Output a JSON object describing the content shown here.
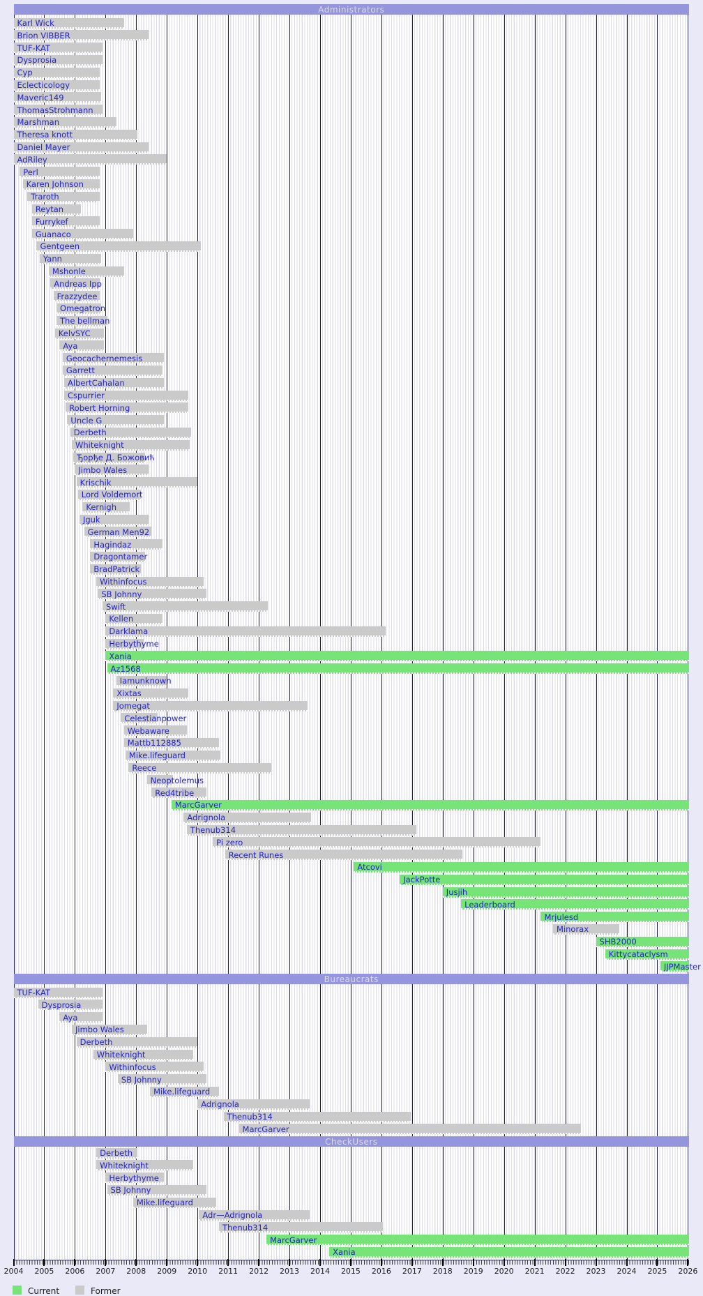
{
  "colors": {
    "page_background": "#e9e9f8",
    "header_bar": "#9595dd",
    "header_text": "#dcdce8",
    "current_bar": "#76e476",
    "former_bar": "#cacaca",
    "label_text": "#2222cc",
    "year_gridline": "#1a1a5e"
  },
  "legend": [
    {
      "label": "Current",
      "color": "#76e476"
    },
    {
      "label": "Former",
      "color": "#cacaca"
    }
  ],
  "chart_data": {
    "type": "timeline",
    "unit": "year",
    "axis": {
      "min": 2004,
      "max": 2026,
      "tick_years": [
        2004,
        2005,
        2006,
        2007,
        2008,
        2009,
        2010,
        2011,
        2012,
        2013,
        2014,
        2015,
        2016,
        2017,
        2018,
        2019,
        2020,
        2021,
        2022,
        2023,
        2024,
        2025,
        2026
      ],
      "grid": "yearly-major-monthly-minor",
      "legend_position": "bottom-left"
    },
    "sections": [
      {
        "title": "Administrators",
        "entries": [
          {
            "name": "Karl Wick",
            "start": 2004.0,
            "end": 2007.6,
            "status": "former"
          },
          {
            "name": "Brion VIBBER",
            "start": 2004.0,
            "end": 2008.4,
            "status": "former"
          },
          {
            "name": "TUF-KAT",
            "start": 2004.0,
            "end": 2006.9,
            "status": "former"
          },
          {
            "name": "Dysprosia",
            "start": 2004.0,
            "end": 2006.9,
            "status": "former"
          },
          {
            "name": "Cyp",
            "start": 2004.0,
            "end": 2006.8,
            "status": "former"
          },
          {
            "name": "Eclecticology",
            "start": 2004.0,
            "end": 2006.8,
            "status": "former"
          },
          {
            "name": "Maveric149",
            "start": 2004.0,
            "end": 2006.85,
            "status": "former"
          },
          {
            "name": "ThomasStrohmann",
            "start": 2004.0,
            "end": 2006.9,
            "status": "former"
          },
          {
            "name": "Marshman",
            "start": 2004.0,
            "end": 2007.35,
            "status": "former"
          },
          {
            "name": "Theresa knott",
            "start": 2004.0,
            "end": 2008.05,
            "status": "former"
          },
          {
            "name": "Daniel Mayer",
            "start": 2004.0,
            "end": 2008.4,
            "status": "former"
          },
          {
            "name": "AdRiley",
            "start": 2004.0,
            "end": 2009.0,
            "status": "former"
          },
          {
            "name": "Perl",
            "start": 2004.2,
            "end": 2006.8,
            "status": "former"
          },
          {
            "name": "Karen Johnson",
            "start": 2004.3,
            "end": 2006.8,
            "status": "former"
          },
          {
            "name": "Traroth",
            "start": 2004.45,
            "end": 2006.8,
            "status": "former"
          },
          {
            "name": "Reytan",
            "start": 2004.6,
            "end": 2006.2,
            "status": "former"
          },
          {
            "name": "Furrykef",
            "start": 2004.6,
            "end": 2006.8,
            "status": "former"
          },
          {
            "name": "Guanaco",
            "start": 2004.6,
            "end": 2007.9,
            "status": "former"
          },
          {
            "name": "Gentgeen",
            "start": 2004.75,
            "end": 2010.1,
            "status": "former"
          },
          {
            "name": "Yann",
            "start": 2004.85,
            "end": 2006.85,
            "status": "former"
          },
          {
            "name": "Mshonle",
            "start": 2005.15,
            "end": 2007.6,
            "status": "former"
          },
          {
            "name": "Andreas Ipp",
            "start": 2005.2,
            "end": 2006.8,
            "status": "former"
          },
          {
            "name": "Frazzydee",
            "start": 2005.3,
            "end": 2006.8,
            "status": "former"
          },
          {
            "name": "Omegatron",
            "start": 2005.4,
            "end": 2006.85,
            "status": "former"
          },
          {
            "name": "The bellman",
            "start": 2005.4,
            "end": 2007.05,
            "status": "former"
          },
          {
            "name": "KelvSYC",
            "start": 2005.35,
            "end": 2006.95,
            "status": "former"
          },
          {
            "name": "Aya",
            "start": 2005.5,
            "end": 2006.95,
            "status": "former"
          },
          {
            "name": "Geocachernemesis",
            "start": 2005.6,
            "end": 2008.9,
            "status": "former"
          },
          {
            "name": "Garrett",
            "start": 2005.6,
            "end": 2008.85,
            "status": "former"
          },
          {
            "name": "AlbertCahalan",
            "start": 2005.65,
            "end": 2008.9,
            "status": "former"
          },
          {
            "name": "Cspurrier",
            "start": 2005.65,
            "end": 2009.7,
            "status": "former"
          },
          {
            "name": "Robert Horning",
            "start": 2005.7,
            "end": 2009.7,
            "status": "former"
          },
          {
            "name": "Uncle G",
            "start": 2005.75,
            "end": 2008.9,
            "status": "former"
          },
          {
            "name": "Derbeth",
            "start": 2005.85,
            "end": 2009.8,
            "status": "former"
          },
          {
            "name": "Whiteknight",
            "start": 2005.9,
            "end": 2009.75,
            "status": "former"
          },
          {
            "name": "Ђорђе Д. Божовић",
            "start": 2005.95,
            "end": 2008.3,
            "status": "former"
          },
          {
            "name": "Jimbo Wales",
            "start": 2006.0,
            "end": 2008.4,
            "status": "former"
          },
          {
            "name": "Krischik",
            "start": 2006.05,
            "end": 2010.0,
            "status": "former"
          },
          {
            "name": "Lord Voldemort",
            "start": 2006.1,
            "end": 2008.15,
            "status": "former"
          },
          {
            "name": "Kernigh",
            "start": 2006.25,
            "end": 2007.8,
            "status": "former"
          },
          {
            "name": "Jguk",
            "start": 2006.15,
            "end": 2008.4,
            "status": "former"
          },
          {
            "name": "German Men92",
            "start": 2006.3,
            "end": 2008.5,
            "status": "former"
          },
          {
            "name": "Hagindaz",
            "start": 2006.5,
            "end": 2008.85,
            "status": "former"
          },
          {
            "name": "Dragontamer",
            "start": 2006.5,
            "end": 2008.3,
            "status": "former"
          },
          {
            "name": "BradPatrick",
            "start": 2006.5,
            "end": 2008.15,
            "status": "former"
          },
          {
            "name": "Withinfocus",
            "start": 2006.7,
            "end": 2010.2,
            "status": "former"
          },
          {
            "name": "SB Johnny",
            "start": 2006.75,
            "end": 2010.3,
            "status": "former"
          },
          {
            "name": "Swift",
            "start": 2006.9,
            "end": 2012.3,
            "status": "former"
          },
          {
            "name": "Kellen",
            "start": 2007.0,
            "end": 2008.85,
            "status": "former"
          },
          {
            "name": "Darklama",
            "start": 2007.0,
            "end": 2016.15,
            "status": "former"
          },
          {
            "name": "Herbythyme",
            "start": 2007.0,
            "end": 2008.25,
            "status": "former"
          },
          {
            "name": "Xania",
            "start": 2007.0,
            "end": null,
            "status": "current"
          },
          {
            "name": "Az1568",
            "start": 2007.05,
            "end": null,
            "status": "current"
          },
          {
            "name": "Iamunknown",
            "start": 2007.35,
            "end": 2009.0,
            "status": "former"
          },
          {
            "name": "Xixtas",
            "start": 2007.25,
            "end": 2009.7,
            "status": "former"
          },
          {
            "name": "Jomegat",
            "start": 2007.25,
            "end": 2013.6,
            "status": "former"
          },
          {
            "name": "Celestianpower",
            "start": 2007.5,
            "end": 2008.7,
            "status": "former"
          },
          {
            "name": "Webaware",
            "start": 2007.6,
            "end": 2009.65,
            "status": "former"
          },
          {
            "name": "Mattb112885",
            "start": 2007.6,
            "end": 2010.7,
            "status": "former"
          },
          {
            "name": "Mike.lifeguard",
            "start": 2007.65,
            "end": 2010.75,
            "status": "former"
          },
          {
            "name": "Reece",
            "start": 2007.75,
            "end": 2012.4,
            "status": "former"
          },
          {
            "name": "Neoptolemus",
            "start": 2008.35,
            "end": 2009.2,
            "status": "former"
          },
          {
            "name": "Red4tribe",
            "start": 2008.5,
            "end": 2010.3,
            "status": "former"
          },
          {
            "name": "MarcGarver",
            "start": 2009.15,
            "end": null,
            "status": "current"
          },
          {
            "name": "Adrignola",
            "start": 2009.55,
            "end": 2013.7,
            "status": "former"
          },
          {
            "name": "Thenub314",
            "start": 2009.65,
            "end": 2017.15,
            "status": "former"
          },
          {
            "name": "Pi zero",
            "start": 2010.5,
            "end": 2021.2,
            "status": "former"
          },
          {
            "name": "Recent Runes",
            "start": 2010.9,
            "end": 2018.65,
            "status": "former"
          },
          {
            "name": "Atcovi",
            "start": 2015.1,
            "end": null,
            "status": "current"
          },
          {
            "name": "JackPotte",
            "start": 2016.6,
            "end": null,
            "status": "current"
          },
          {
            "name": "Jusjih",
            "start": 2018.0,
            "end": null,
            "status": "current"
          },
          {
            "name": "Leaderboard",
            "start": 2018.6,
            "end": null,
            "status": "current"
          },
          {
            "name": "Mrjulesd",
            "start": 2021.2,
            "end": null,
            "status": "current"
          },
          {
            "name": "Minorax",
            "start": 2021.6,
            "end": 2023.75,
            "status": "former"
          },
          {
            "name": "SHB2000",
            "start": 2023.0,
            "end": null,
            "status": "current"
          },
          {
            "name": "Kittycataclysm",
            "start": 2023.3,
            "end": null,
            "status": "current"
          },
          {
            "name": "JJPMaster",
            "start": 2025.1,
            "end": null,
            "status": "current"
          }
        ]
      },
      {
        "title": "Bureaucrats",
        "entries": [
          {
            "name": "TUF-KAT",
            "start": 2004.0,
            "end": 2006.9,
            "status": "former"
          },
          {
            "name": "Dysprosia",
            "start": 2004.8,
            "end": 2006.9,
            "status": "former"
          },
          {
            "name": "Aya",
            "start": 2005.5,
            "end": 2006.9,
            "status": "former"
          },
          {
            "name": "Jimbo Wales",
            "start": 2005.9,
            "end": 2008.35,
            "status": "former"
          },
          {
            "name": "Derbeth",
            "start": 2006.05,
            "end": 2010.0,
            "status": "former"
          },
          {
            "name": "Whiteknight",
            "start": 2006.6,
            "end": 2009.85,
            "status": "former"
          },
          {
            "name": "Withinfocus",
            "start": 2007.0,
            "end": 2010.2,
            "status": "former"
          },
          {
            "name": "SB Johnny",
            "start": 2007.4,
            "end": 2010.3,
            "status": "former"
          },
          {
            "name": "Mike.lifeguard",
            "start": 2008.45,
            "end": 2010.7,
            "status": "former"
          },
          {
            "name": "Adrignola",
            "start": 2010.0,
            "end": 2013.65,
            "status": "former"
          },
          {
            "name": "Thenub314",
            "start": 2010.85,
            "end": 2016.95,
            "status": "former"
          },
          {
            "name": "MarcGarver",
            "start": 2011.35,
            "end": 2022.5,
            "status": "former"
          }
        ]
      },
      {
        "title": "CheckUsers",
        "entries": [
          {
            "name": "Derbeth",
            "start": 2006.7,
            "end": 2008.05,
            "status": "former"
          },
          {
            "name": "Whiteknight",
            "start": 2006.7,
            "end": 2009.85,
            "status": "former"
          },
          {
            "name": "Herbythyme",
            "start": 2007.0,
            "end": 2008.9,
            "status": "former"
          },
          {
            "name": "SB Johnny",
            "start": 2007.05,
            "end": 2010.3,
            "status": "former"
          },
          {
            "name": "Mike.lifeguard",
            "start": 2007.9,
            "end": 2010.6,
            "status": "former"
          },
          {
            "name": "Adr—Adrignola",
            "start": 2010.05,
            "end": 2013.65,
            "status": "former"
          },
          {
            "name": "Thenub314",
            "start": 2010.7,
            "end": 2016.05,
            "status": "former"
          },
          {
            "name": "MarcGarver",
            "start": 2012.25,
            "end": null,
            "status": "current"
          },
          {
            "name": "Xania",
            "start": 2014.3,
            "end": null,
            "status": "current"
          }
        ]
      }
    ]
  }
}
